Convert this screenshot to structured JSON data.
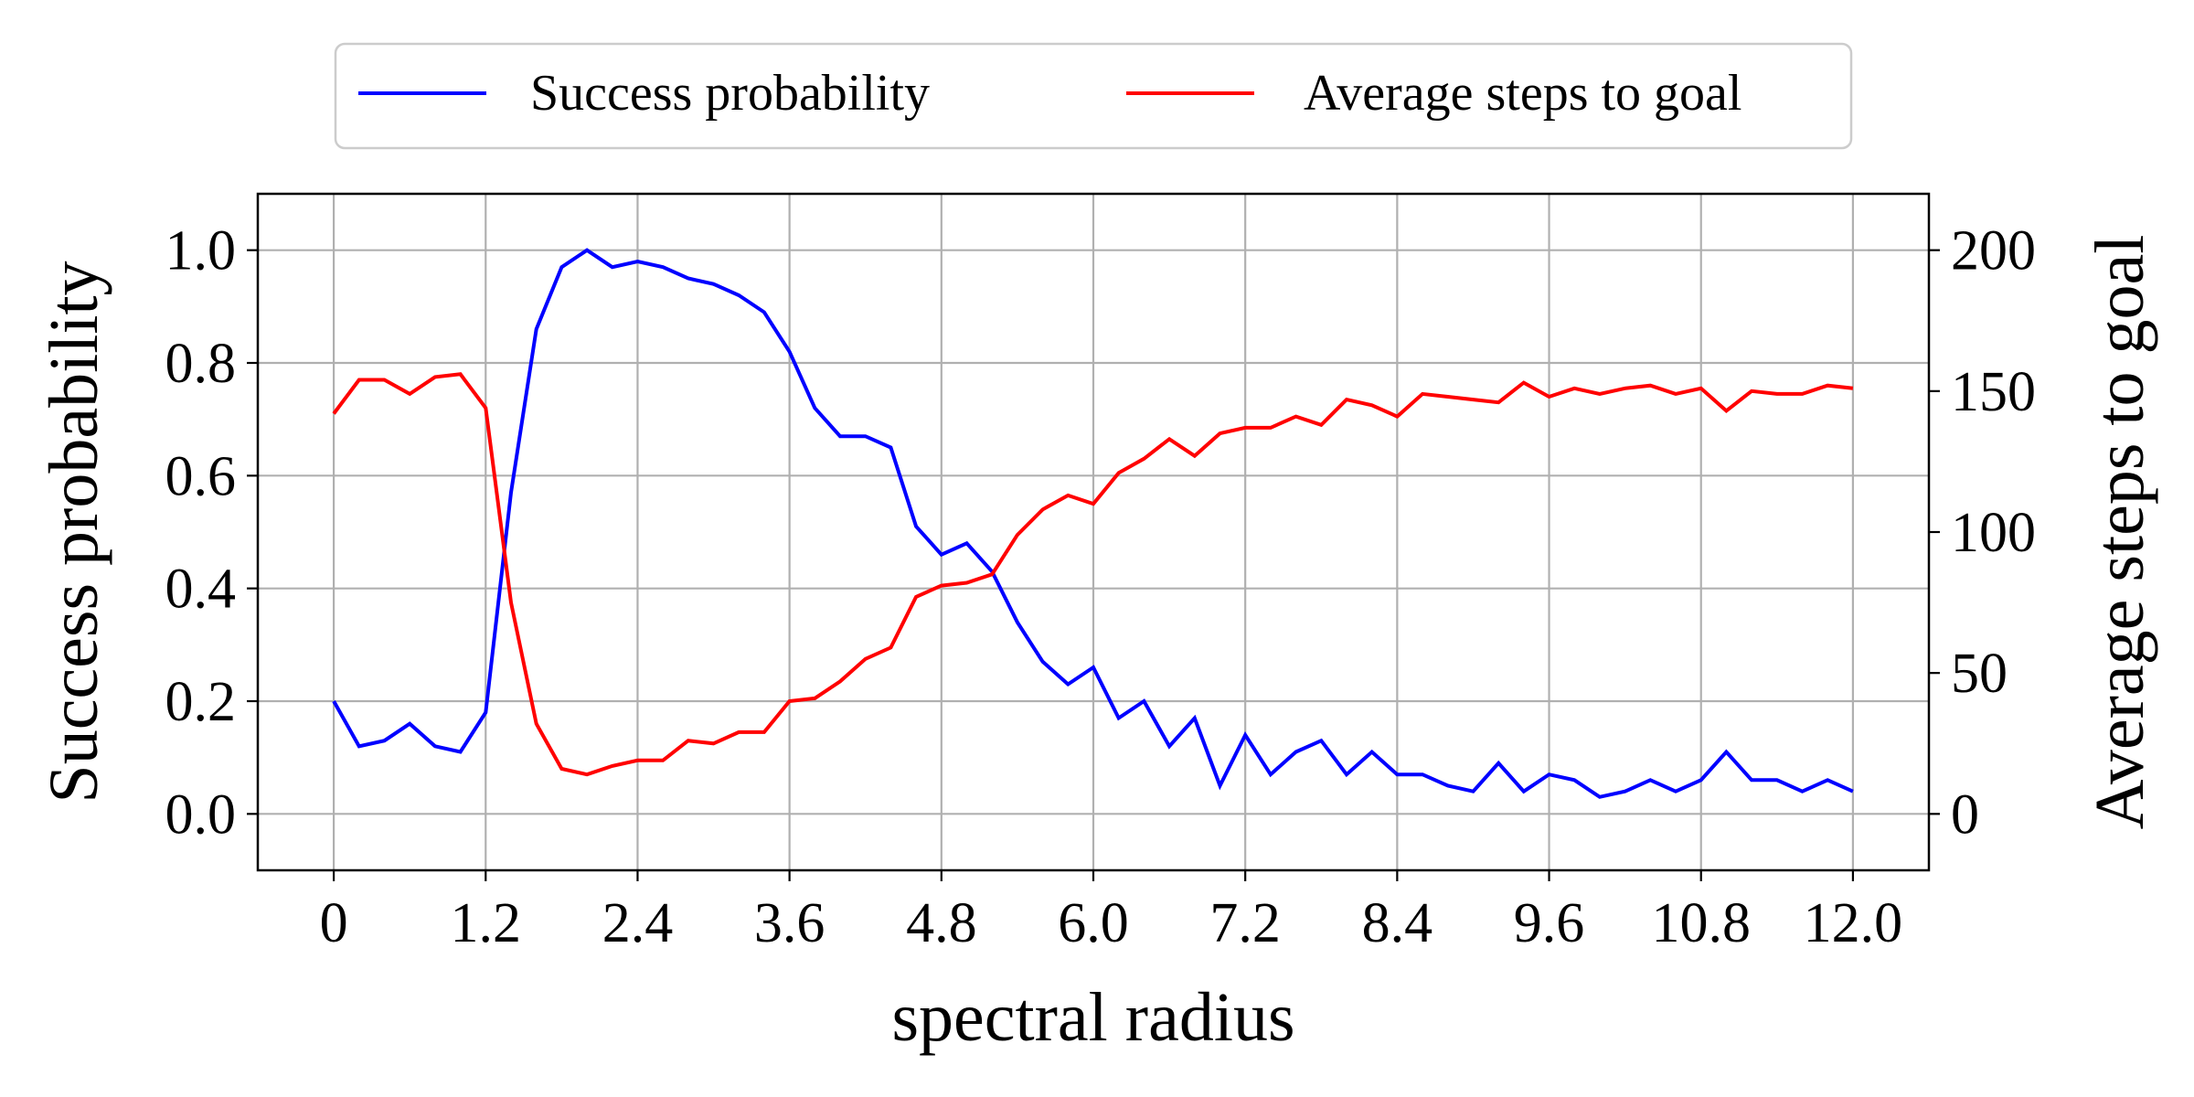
{
  "chart_data": {
    "type": "line",
    "xlabel": "spectral radius",
    "ylabel_left": "Success probability",
    "ylabel_right": "Average steps to goal",
    "xlim": [
      -0.6,
      12.6
    ],
    "ylim_left": [
      -0.1,
      1.1
    ],
    "ylim_right": [
      -20,
      220
    ],
    "x_ticks": [
      "0",
      "1.2",
      "2.4",
      "3.6",
      "4.8",
      "6.0",
      "7.2",
      "8.4",
      "9.6",
      "10.8",
      "12.0"
    ],
    "y_ticks_left": [
      "0.0",
      "0.2",
      "0.4",
      "0.6",
      "0.8",
      "1.0"
    ],
    "y_ticks_right": [
      "0",
      "50",
      "100",
      "150",
      "200"
    ],
    "grid": true,
    "legend_position": "top-center-outside",
    "x": [
      0,
      0.2,
      0.4,
      0.6,
      0.8,
      1.0,
      1.2,
      1.4,
      1.6,
      1.8,
      2.0,
      2.2,
      2.4,
      2.6,
      2.8,
      3.0,
      3.2,
      3.4,
      3.6,
      3.8,
      4.0,
      4.2,
      4.4,
      4.6,
      4.8,
      5.0,
      5.2,
      5.4,
      5.6,
      5.8,
      6.0,
      6.2,
      6.4,
      6.6,
      6.8,
      7.0,
      7.2,
      7.4,
      7.6,
      7.8,
      8.0,
      8.2,
      8.4,
      8.6,
      8.8,
      9.0,
      9.2,
      9.4,
      9.6,
      9.8,
      10.0,
      10.2,
      10.4,
      10.6,
      10.8,
      11.0,
      11.2,
      11.4,
      11.6,
      11.8,
      12.0
    ],
    "series": [
      {
        "name": "Success probability",
        "axis": "left",
        "color": "#0000ff",
        "values": [
          0.2,
          0.12,
          0.13,
          0.16,
          0.12,
          0.11,
          0.18,
          0.57,
          0.86,
          0.97,
          1.0,
          0.97,
          0.98,
          0.97,
          0.95,
          0.94,
          0.92,
          0.89,
          0.82,
          0.72,
          0.67,
          0.67,
          0.65,
          0.51,
          0.46,
          0.48,
          0.43,
          0.34,
          0.27,
          0.23,
          0.26,
          0.17,
          0.2,
          0.12,
          0.17,
          0.05,
          0.14,
          0.07,
          0.11,
          0.13,
          0.07,
          0.11,
          0.07,
          0.07,
          0.05,
          0.04,
          0.09,
          0.04,
          0.07,
          0.06,
          0.03,
          0.04,
          0.06,
          0.04,
          0.06,
          0.11,
          0.06,
          0.06,
          0.04,
          0.06,
          0.04
        ]
      },
      {
        "name": "Average steps to goal",
        "axis": "right",
        "color": "#ff0000",
        "values": [
          142,
          154,
          154,
          149,
          155,
          156,
          144,
          75,
          32,
          16,
          14,
          17,
          19,
          19,
          26,
          25,
          29,
          29,
          40,
          41,
          47,
          55,
          59,
          77,
          81,
          82,
          85,
          99,
          108,
          113,
          110,
          121,
          126,
          133,
          127,
          135,
          137,
          137,
          141,
          138,
          147,
          145,
          141,
          149,
          148,
          147,
          146,
          153,
          148,
          151,
          149,
          151,
          152,
          149,
          151,
          143,
          150,
          149,
          149,
          152,
          151
        ]
      }
    ]
  }
}
